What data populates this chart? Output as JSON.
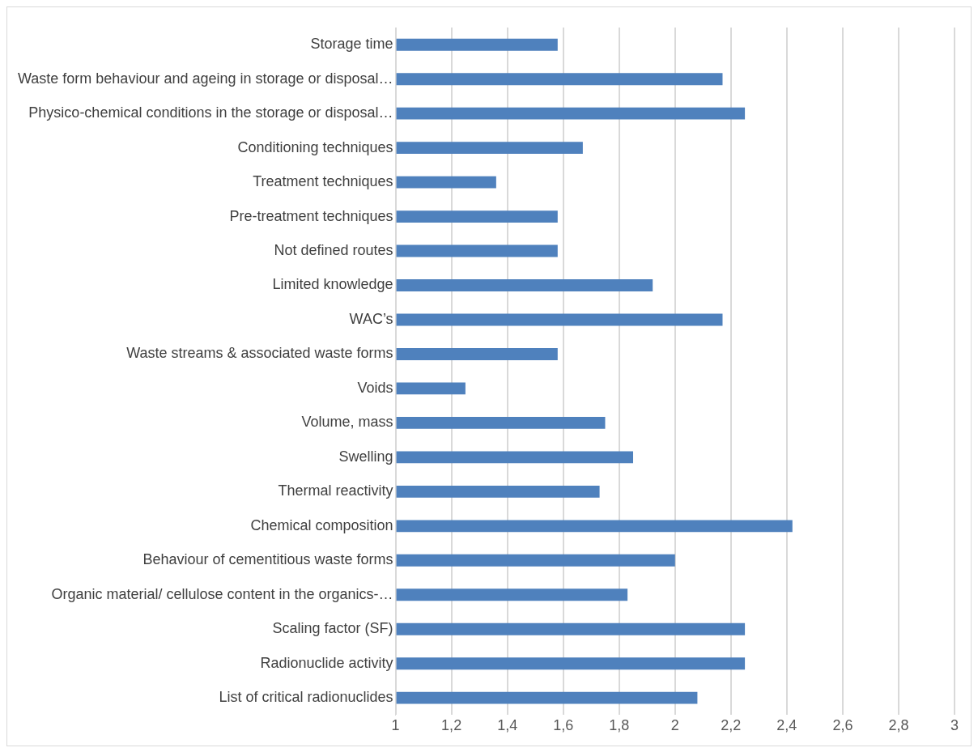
{
  "chart_data": {
    "type": "bar",
    "orientation": "horizontal",
    "color": "#4f81bd",
    "categories": [
      "Storage time",
      "Waste form behaviour and ageing in storage or disposal…",
      "Physico-chemical conditions in the storage or disposal…",
      "Conditioning techniques",
      "Treatment techniques",
      "Pre-treatment techniques",
      "Not defined routes",
      "Limited knowledge",
      "WAC’s",
      "Waste streams & associated waste forms",
      "Voids",
      "Volume, mass",
      "Swelling",
      "Thermal reactivity",
      "Chemical composition",
      "Behaviour of cementitious waste forms",
      "Organic material/ cellulose content in the organics-…",
      "Scaling factor (SF)",
      "Radionuclide activity",
      "List of critical radionuclides"
    ],
    "values": [
      1.58,
      2.17,
      2.25,
      1.67,
      1.36,
      1.58,
      1.58,
      1.92,
      2.17,
      1.58,
      1.25,
      1.75,
      1.85,
      1.73,
      2.42,
      2.0,
      1.83,
      2.25,
      2.25,
      2.08
    ],
    "xlim": [
      1,
      3
    ],
    "xticks": [
      1,
      {
        "value": 1.2,
        "label": "1,2"
      },
      {
        "value": 1.4,
        "label": "1,4"
      },
      {
        "value": 1.6,
        "label": "1,6"
      },
      {
        "value": 1.8,
        "label": "1,8"
      },
      2,
      {
        "value": 2.2,
        "label": "2,2"
      },
      {
        "value": 2.4,
        "label": "2,4"
      },
      {
        "value": 2.6,
        "label": "2,6"
      },
      {
        "value": 2.8,
        "label": "2,8"
      },
      3
    ],
    "grid": "x"
  }
}
